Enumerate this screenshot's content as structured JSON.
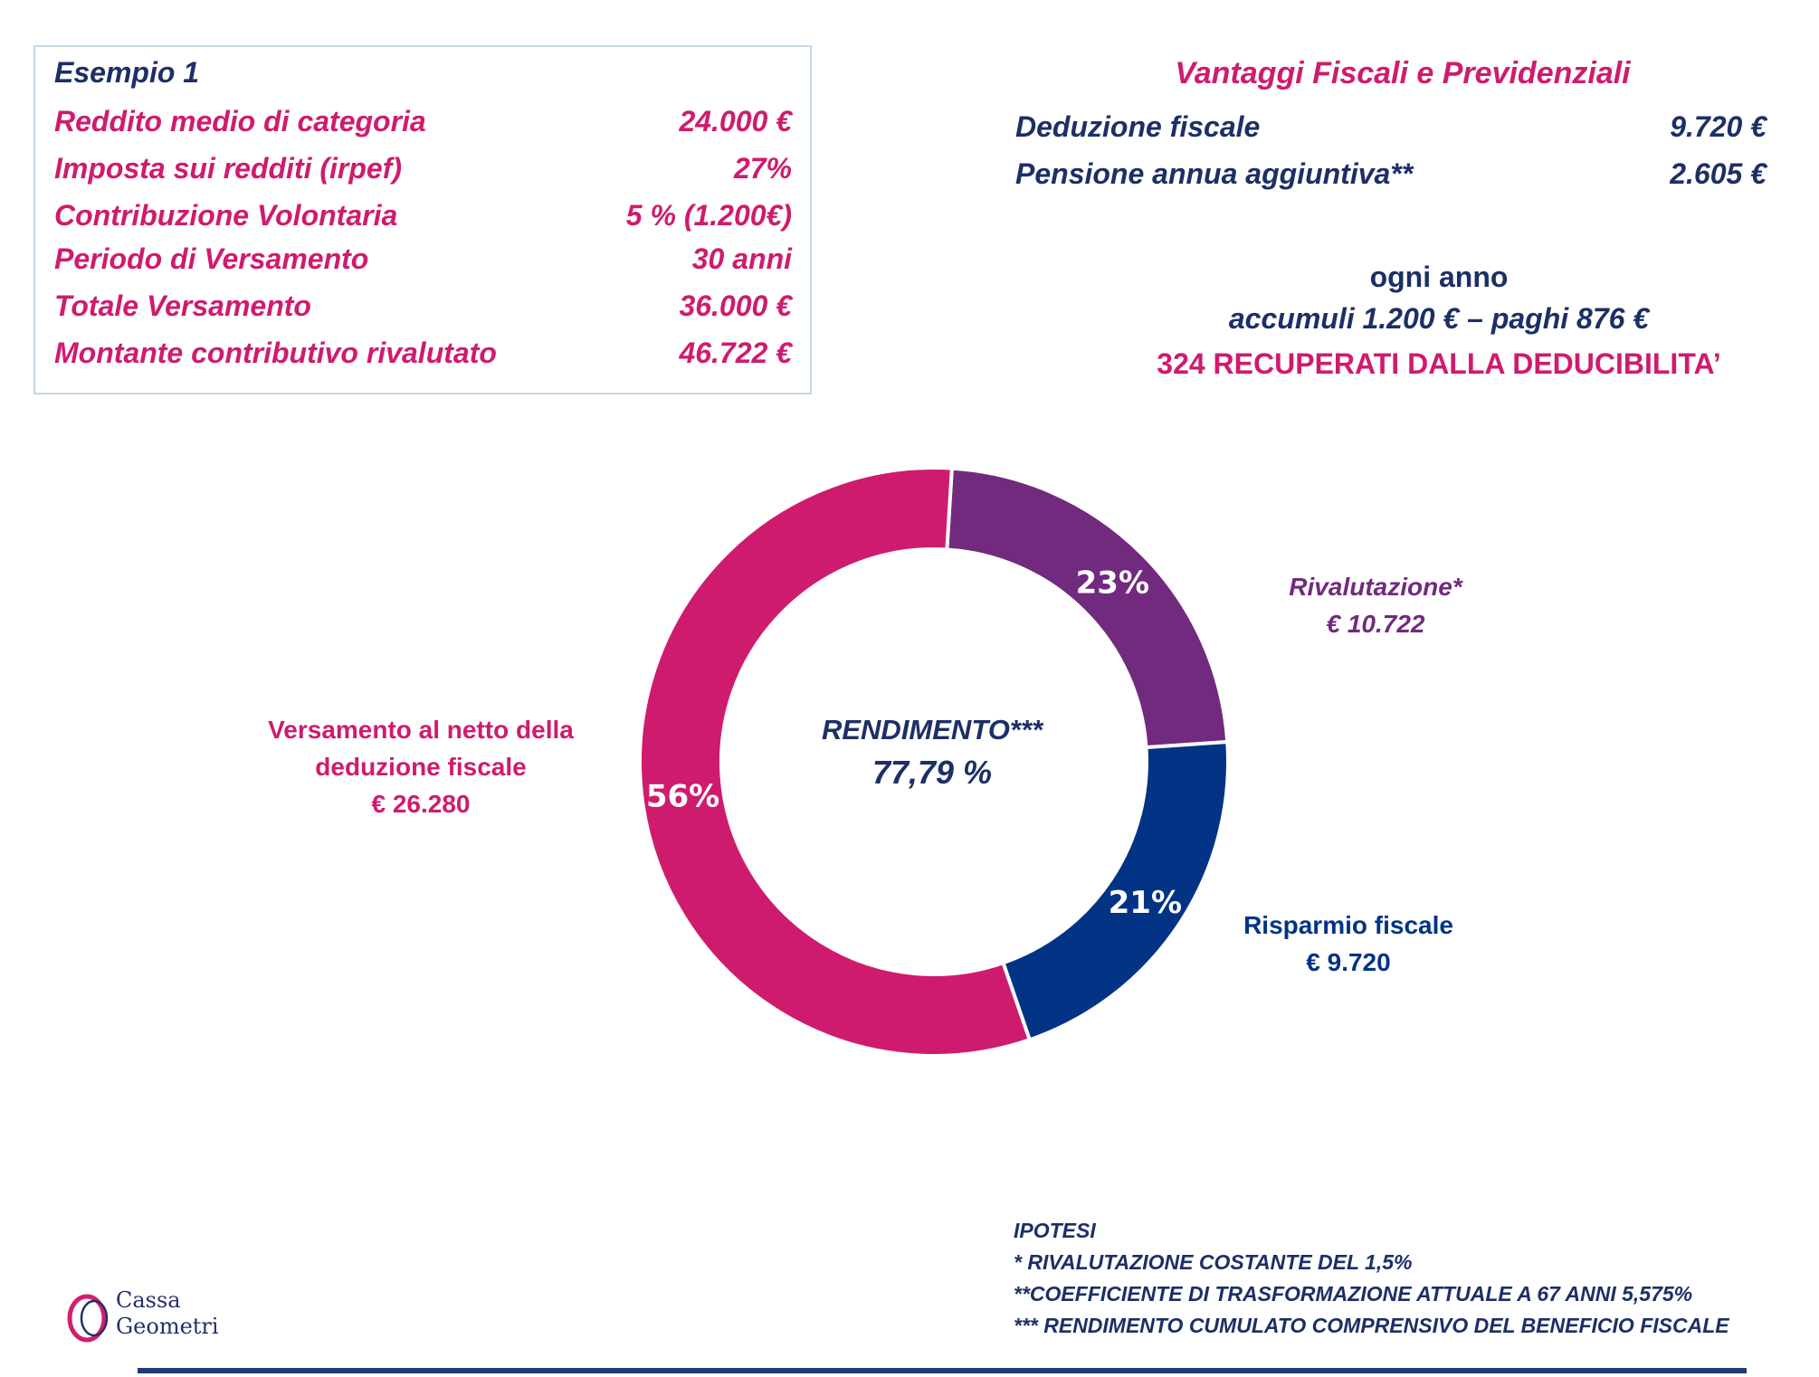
{
  "colors": {
    "navy": "#1c2f66",
    "magenta": "#cf1b6e",
    "purple": "#722a7e",
    "blue": "#033385",
    "rule": "#223a75"
  },
  "example": {
    "title": "Esempio 1",
    "rows": [
      {
        "label": "Reddito medio di categoria",
        "value": "24.000 €"
      },
      {
        "label": "Imposta sui redditi (irpef)",
        "value": "27%"
      },
      {
        "label": "Contribuzione Volontaria",
        "value": "5 % (1.200€)"
      },
      {
        "label": "Periodo di Versamento",
        "value": "30 anni"
      },
      {
        "label": "Totale Versamento",
        "value": "36.000 €"
      },
      {
        "label": "Montante contributivo rivalutato",
        "value": "46.722 €"
      }
    ]
  },
  "vantaggi": {
    "title": "Vantaggi Fiscali e Previdenziali",
    "rows": [
      {
        "label": "Deduzione fiscale",
        "value": "9.720 €"
      },
      {
        "label": "Pensione annua aggiuntiva**",
        "value": "2.605 €"
      }
    ]
  },
  "summary": {
    "line1": "ogni anno",
    "line2": "accumuli 1.200 € – paghi 876 €",
    "line3": "324 RECUPERATI DALLA DEDUCIBILITA’"
  },
  "chart_data": {
    "type": "pie",
    "title": "",
    "center_label": "RENDIMENTO***",
    "center_value": "77,79 %",
    "slices": [
      {
        "name": "Rivalutazione*",
        "amount": "€ 10.722",
        "value": 10722,
        "percent_label": "23%",
        "color": "#722a7e"
      },
      {
        "name": "Risparmio fiscale",
        "amount": "€ 9.720",
        "value": 9720,
        "percent_label": "21%",
        "color": "#033385"
      },
      {
        "name": "Versamento al netto della deduzione fiscale",
        "name_line1": "Versamento al netto della",
        "name_line2": "deduzione fiscale",
        "amount": "€ 26.280",
        "value": 26280,
        "percent_label": "56%",
        "color": "#cf1b6e"
      }
    ]
  },
  "ipotesi": {
    "title": "IPOTESI",
    "lines": [
      "*  RIVALUTAZIONE COSTANTE DEL 1,5%",
      "**COEFFICIENTE DI TRASFORMAZIONE ATTUALE A 67 ANNI  5,575%",
      "*** RENDIMENTO CUMULATO COMPRENSIVO DEL BENEFICIO FISCALE"
    ]
  },
  "logo": {
    "line1": "Cassa",
    "line2": "Geometri"
  }
}
